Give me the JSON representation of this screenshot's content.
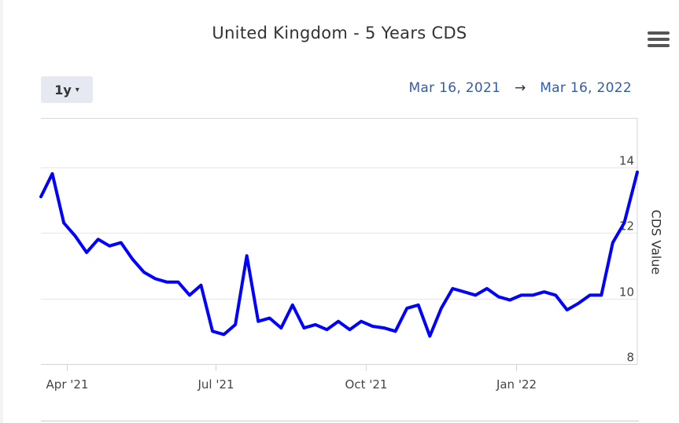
{
  "title": "United Kingdom - 5 Years CDS",
  "controls": {
    "range_label": "1y",
    "range_caret": "▾",
    "date_from": "Mar 16, 2021",
    "date_arrow": "→",
    "date_to": "Mar 16, 2022",
    "menu_icon": "hamburger-menu-icon"
  },
  "colors": {
    "series": "#0000ff",
    "date_text": "#335cad"
  },
  "chart_data": {
    "type": "line",
    "ylabel": "CDS Value",
    "xlim": [
      "2021-03-16",
      "2022-03-16"
    ],
    "ylim": [
      8,
      15.5
    ],
    "yticks": [
      {
        "value": 8,
        "label": "8"
      },
      {
        "value": 10,
        "label": "10"
      },
      {
        "value": 12,
        "label": "12"
      },
      {
        "value": 14,
        "label": "14"
      }
    ],
    "xticks": [
      {
        "date": "2021-04-01",
        "label": "Apr '21"
      },
      {
        "date": "2021-07-01",
        "label": "Jul '21"
      },
      {
        "date": "2021-10-01",
        "label": "Oct '21"
      },
      {
        "date": "2022-01-01",
        "label": "Jan '22"
      }
    ],
    "grid": true,
    "series": [
      {
        "x": [
          "2021-03-16",
          "2021-03-23",
          "2021-03-30",
          "2021-04-06",
          "2021-04-13",
          "2021-04-20",
          "2021-04-27",
          "2021-05-04",
          "2021-05-11",
          "2021-05-18",
          "2021-05-25",
          "2021-06-01",
          "2021-06-08",
          "2021-06-15",
          "2021-06-22",
          "2021-06-29",
          "2021-07-06",
          "2021-07-13",
          "2021-07-20",
          "2021-07-27",
          "2021-08-03",
          "2021-08-10",
          "2021-08-17",
          "2021-08-24",
          "2021-08-31",
          "2021-09-07",
          "2021-09-14",
          "2021-09-21",
          "2021-09-28",
          "2021-10-05",
          "2021-10-12",
          "2021-10-19",
          "2021-10-26",
          "2021-11-02",
          "2021-11-09",
          "2021-11-16",
          "2021-11-23",
          "2021-11-30",
          "2021-12-07",
          "2021-12-14",
          "2021-12-21",
          "2021-12-28",
          "2022-01-04",
          "2022-01-11",
          "2022-01-18",
          "2022-01-25",
          "2022-02-01",
          "2022-02-08",
          "2022-02-15",
          "2022-02-22",
          "2022-03-01",
          "2022-03-08",
          "2022-03-16"
        ],
        "y": [
          13.1,
          13.8,
          12.3,
          11.9,
          11.4,
          11.8,
          11.6,
          11.7,
          11.2,
          10.8,
          10.6,
          10.5,
          10.5,
          10.1,
          10.4,
          9.0,
          8.9,
          9.2,
          11.3,
          9.3,
          9.4,
          9.1,
          9.8,
          9.1,
          9.2,
          9.05,
          9.3,
          9.05,
          9.3,
          9.15,
          9.1,
          9.0,
          9.7,
          9.8,
          8.85,
          9.7,
          10.3,
          10.2,
          10.1,
          10.3,
          10.05,
          9.95,
          10.1,
          10.1,
          10.2,
          10.1,
          9.65,
          9.85,
          10.1,
          10.1,
          11.7,
          12.3,
          13.85
        ]
      }
    ]
  }
}
